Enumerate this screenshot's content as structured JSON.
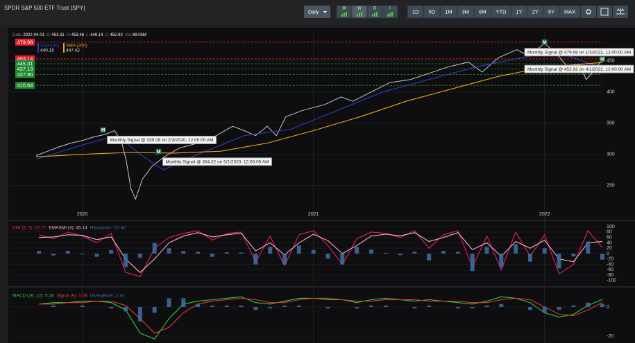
{
  "header": {
    "title": "SPDR S&P 500 ETF Trust (SPY)",
    "interval": "Daily",
    "periods": [
      "M",
      "W",
      "D",
      "I"
    ],
    "ranges": [
      "1D",
      "5D",
      "1M",
      "3M",
      "6M",
      "YTD",
      "1Y",
      "2Y",
      "5Y",
      "MAX"
    ]
  },
  "chart_data": [
    {
      "type": "line",
      "info": [
        {
          "key": "Date:",
          "value": "2022-04-01"
        },
        {
          "key": "O:",
          "value": "453.31"
        },
        {
          "key": "H:",
          "value": "453.46"
        },
        {
          "key": "L:",
          "value": "449.14"
        },
        {
          "key": "C:",
          "value": "452.92"
        },
        {
          "key": "Vol:",
          "value": "89.05M"
        }
      ],
      "xlim": [
        2019.8,
        2022.25
      ],
      "xticks": [
        2020,
        2021,
        2022
      ],
      "ylim": [
        214,
        492
      ],
      "yticks": [
        250,
        300,
        350,
        400,
        450
      ],
      "grid": true,
      "series": [
        {
          "color": "#c8c8c8",
          "x": [
            2019.8,
            2019.85,
            2019.9,
            2019.95,
            2020.0,
            2020.05,
            2020.1,
            2020.14,
            2020.17,
            2020.19,
            2020.21,
            2020.23,
            2020.26,
            2020.3,
            2020.35,
            2020.42,
            2020.5,
            2020.58,
            2020.65,
            2020.7,
            2020.75,
            2020.8,
            2020.84,
            2020.88,
            2020.95,
            2021.05,
            2021.12,
            2021.17,
            2021.25,
            2021.33,
            2021.42,
            2021.5,
            2021.58,
            2021.67,
            2021.73,
            2021.8,
            2021.88,
            2021.93,
            2022.0,
            2022.05,
            2022.1,
            2022.15,
            2022.18,
            2022.21,
            2022.25
          ],
          "values": [
            298,
            305,
            312,
            318,
            322,
            328,
            332,
            338,
            320,
            290,
            245,
            228,
            260,
            280,
            295,
            310,
            318,
            330,
            345,
            338,
            330,
            345,
            330,
            360,
            370,
            380,
            392,
            385,
            400,
            415,
            420,
            430,
            440,
            448,
            432,
            455,
            468,
            458,
            478,
            462,
            440,
            445,
            420,
            432,
            452.92
          ]
        },
        {
          "name": "SMA (50)",
          "last_label": "440.15",
          "color": "#2b3fc4",
          "x": [
            2019.8,
            2020.0,
            2020.15,
            2020.25,
            2020.35,
            2020.5,
            2020.7,
            2020.9,
            2021.1,
            2021.3,
            2021.5,
            2021.7,
            2021.9,
            2022.05,
            2022.2,
            2022.25
          ],
          "values": [
            292,
            315,
            330,
            300,
            275,
            300,
            330,
            340,
            370,
            400,
            420,
            440,
            455,
            465,
            445,
            440.15
          ]
        },
        {
          "name": "SMA (200)",
          "last_label": "447.42",
          "color": "#f0a21a",
          "x": [
            2019.8,
            2020.0,
            2020.2,
            2020.4,
            2020.6,
            2020.8,
            2021.0,
            2021.2,
            2021.4,
            2021.6,
            2021.8,
            2022.0,
            2022.25
          ],
          "values": [
            296,
            300,
            303,
            302,
            305,
            318,
            338,
            360,
            385,
            405,
            425,
            440,
            447.42
          ]
        }
      ],
      "levels": [
        {
          "value": 479.98,
          "color": "#e0212b"
        },
        {
          "value": 453.14,
          "color": "#e0212b"
        },
        {
          "value": 445.31,
          "color": "#1f8a2e"
        },
        {
          "value": 437.13,
          "color": "#1f8a2e"
        },
        {
          "value": 427.9,
          "label": "427.90",
          "color": "#1f8a2e"
        },
        {
          "value": 410.64,
          "color": "#1f8a2e"
        }
      ],
      "signals": [
        {
          "x": 2020.09,
          "value": 339.08,
          "marker": "M",
          "label": "Monthly Signal @ 339.08 on 2/3/2020, 12:00:00 AM"
        },
        {
          "x": 2020.33,
          "value": 304.32,
          "marker": "M",
          "label": "Monthly Signal @ 304.32 on 5/1/2020, 12:00:00 AM"
        },
        {
          "x": 2022.0,
          "value": 479.98,
          "marker": "M",
          "label": "Monthly Signal @ 479.98 on 1/3/2022, 12:00:00 AM"
        },
        {
          "x": 2022.25,
          "value": 452.92,
          "marker": "M",
          "label": "Monthly Signal @ 452.92 on 4/1/2022, 12:00:00 AM"
        }
      ]
    },
    {
      "type": "line",
      "xlim": [
        2019.8,
        2022.25
      ],
      "ylim": [
        -108,
        108
      ],
      "yticks": [
        -100,
        -80,
        -60,
        -40,
        -20,
        0,
        20,
        40,
        60,
        80,
        100
      ],
      "x": [
        2019.8125,
        2019.875,
        2019.9375,
        2020,
        2020.0625,
        2020.125,
        2020.1875,
        2020.25,
        2020.3125,
        2020.375,
        2020.4375,
        2020.5,
        2020.5625,
        2020.625,
        2020.6875,
        2020.75,
        2020.8125,
        2020.875,
        2020.9375,
        2021,
        2021.0625,
        2021.125,
        2021.1875,
        2021.25,
        2021.3125,
        2021.375,
        2021.4375,
        2021.5,
        2021.5625,
        2021.625,
        2021.6875,
        2021.75,
        2021.8125,
        2021.875,
        2021.9375,
        2022,
        2022.0625,
        2022.125,
        2022.1875,
        2022.25
      ],
      "series": [
        {
          "name": "SMI (5, 3): 22.72",
          "style": "line",
          "color": "#e91e63",
          "values": [
            70,
            55,
            80,
            65,
            40,
            75,
            -70,
            -85,
            20,
            60,
            75,
            85,
            50,
            75,
            80,
            -30,
            65,
            -45,
            70,
            85,
            30,
            -40,
            55,
            80,
            75,
            60,
            85,
            20,
            70,
            85,
            -50,
            65,
            -60,
            80,
            -10,
            70,
            -75,
            -40,
            85,
            22.72
          ]
        },
        {
          "name": "EMASMI (3): 45.14",
          "style": "line",
          "color": "#f7b3c6",
          "values": [
            60,
            62,
            70,
            68,
            52,
            62,
            -20,
            -70,
            -20,
            40,
            65,
            78,
            62,
            70,
            76,
            10,
            40,
            -5,
            40,
            72,
            48,
            0,
            30,
            65,
            72,
            66,
            78,
            45,
            60,
            78,
            15,
            40,
            -10,
            45,
            20,
            50,
            -20,
            -30,
            40,
            45.14
          ]
        },
        {
          "name": "Histogram: -22.42",
          "style": "bar",
          "color": "#3f6fa8",
          "values": [
            10,
            -7,
            10,
            -3,
            -12,
            13,
            -50,
            -15,
            40,
            20,
            10,
            7,
            -12,
            5,
            4,
            -40,
            25,
            -40,
            30,
            13,
            -18,
            -40,
            25,
            15,
            3,
            -6,
            7,
            -25,
            10,
            7,
            -65,
            25,
            -50,
            35,
            -30,
            20,
            -55,
            -10,
            45,
            -22.42
          ]
        }
      ]
    },
    {
      "type": "line",
      "xlim": [
        2019.8,
        2022.25
      ],
      "ylim": [
        -25,
        10
      ],
      "yticks": [
        -20,
        0
      ],
      "x": [
        2019.8125,
        2019.875,
        2019.9375,
        2020,
        2020.0625,
        2020.125,
        2020.1875,
        2020.25,
        2020.3125,
        2020.375,
        2020.4375,
        2020.5,
        2020.5625,
        2020.625,
        2020.6875,
        2020.75,
        2020.8125,
        2020.875,
        2020.9375,
        2021,
        2021.0625,
        2021.125,
        2021.1875,
        2021.25,
        2021.3125,
        2021.375,
        2021.4375,
        2021.5,
        2021.5625,
        2021.625,
        2021.6875,
        2021.75,
        2021.8125,
        2021.875,
        2021.9375,
        2022,
        2022.0625,
        2022.125,
        2022.1875,
        2022.25
      ],
      "series": [
        {
          "name": "MACD (26, 12): 5.18",
          "style": "line",
          "color": "#2ecc40",
          "values": [
            2,
            3,
            3,
            4,
            4,
            3,
            -2,
            -18,
            -22,
            -8,
            2,
            4,
            5,
            6,
            7,
            3,
            2,
            4,
            6,
            6,
            5,
            5,
            3,
            5,
            6,
            5,
            4,
            5,
            4,
            3,
            2,
            4,
            7,
            6,
            3,
            -4,
            -7,
            -5,
            1,
            5.18
          ]
        },
        {
          "name": "Signal (9): 3.08",
          "style": "line",
          "color": "#e53935",
          "values": [
            2,
            2,
            3,
            3,
            4,
            4,
            1,
            -8,
            -18,
            -14,
            -4,
            2,
            4,
            5,
            6,
            5,
            3,
            3,
            5,
            6,
            6,
            5,
            4,
            4,
            5,
            5,
            5,
            4,
            4,
            4,
            3,
            3,
            5,
            6,
            5,
            0,
            -5,
            -6,
            -2,
            3.08
          ]
        },
        {
          "name": "Divergence: 2.10",
          "style": "bar",
          "color": "#3f6fa8",
          "values": [
            0,
            1,
            0,
            1,
            0,
            -1,
            -3,
            -10,
            -4,
            6,
            6,
            2,
            1,
            1,
            1,
            -2,
            -1,
            1,
            1,
            0,
            -1,
            0,
            -1,
            1,
            1,
            0,
            -1,
            1,
            0,
            -1,
            -1,
            1,
            2,
            0,
            -2,
            -4,
            -2,
            1,
            3,
            2.1
          ]
        }
      ]
    }
  ]
}
